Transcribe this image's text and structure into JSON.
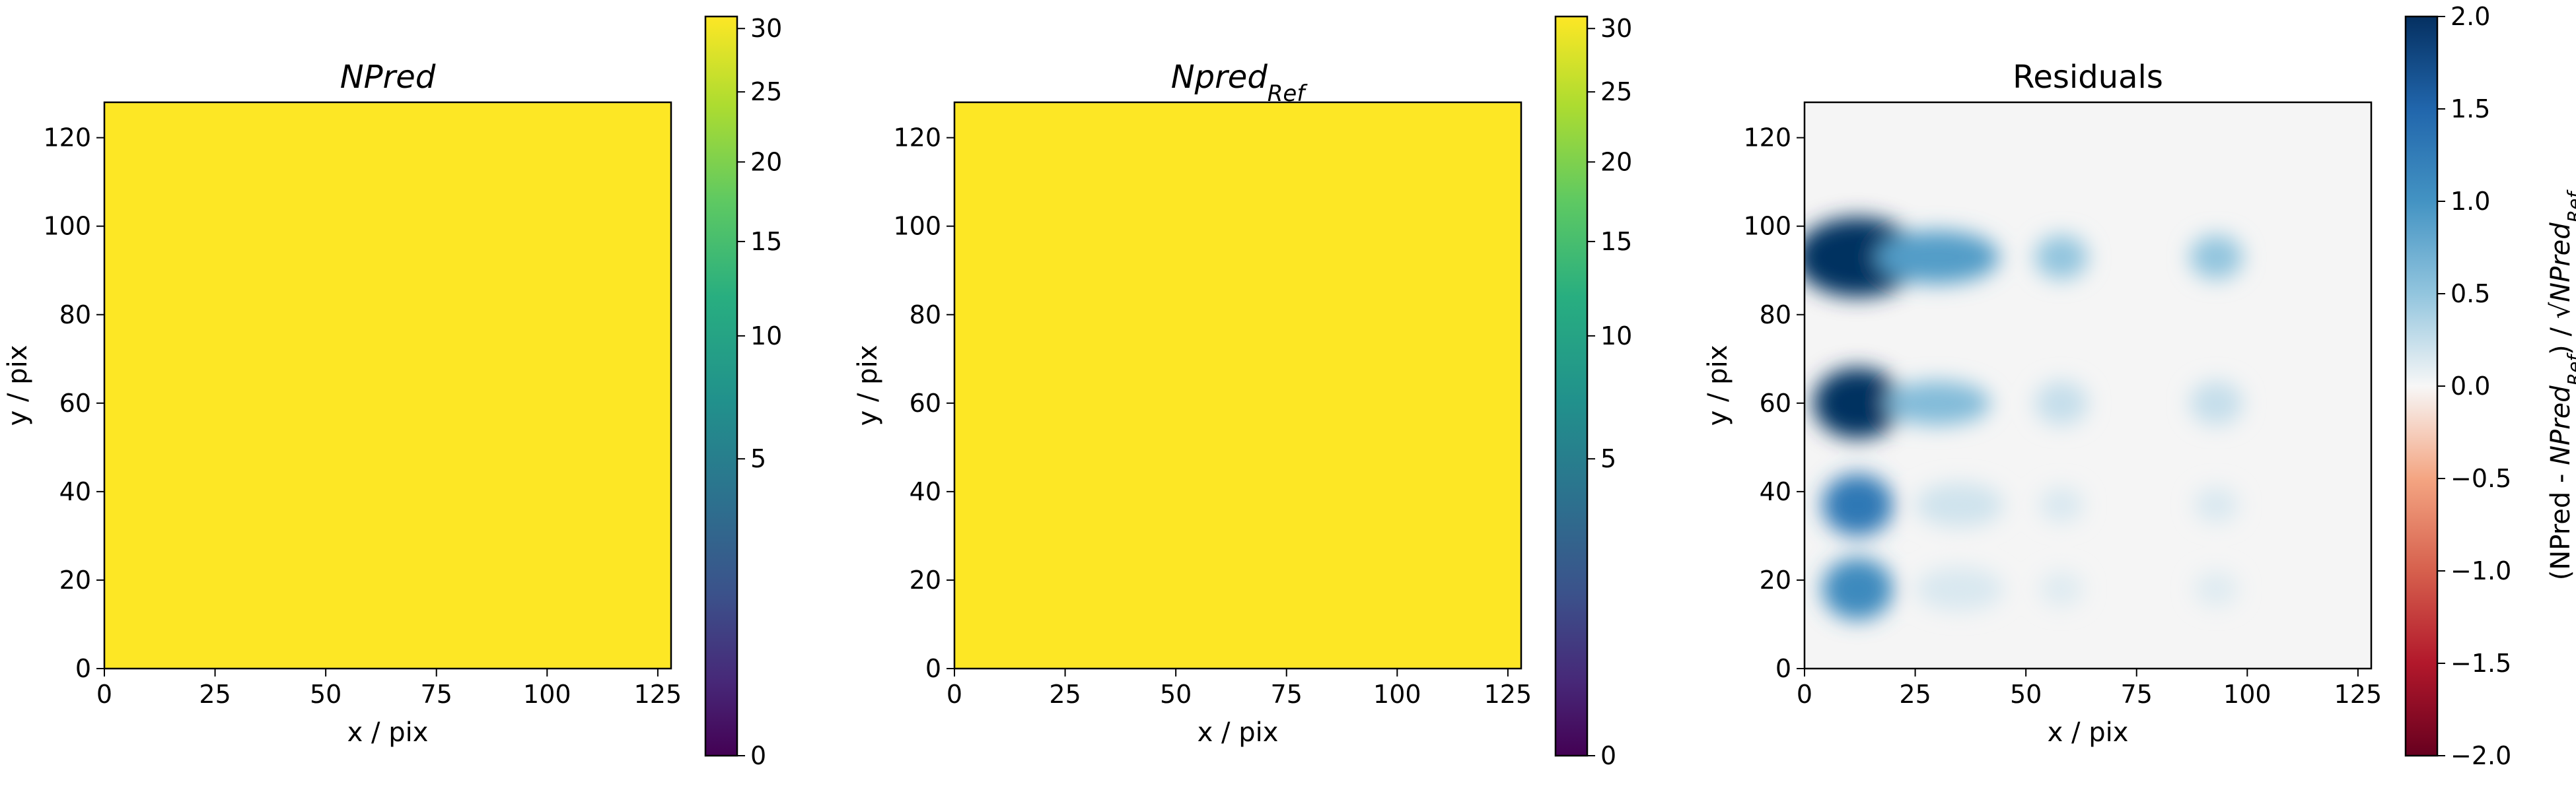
{
  "chart_data": [
    {
      "type": "heatmap",
      "title": "NPred",
      "title_italic": true,
      "xlabel": "x / pix",
      "ylabel": "y / pix",
      "xlim": [
        0,
        128
      ],
      "ylim": [
        0,
        128
      ],
      "xticks": [
        0,
        25,
        50,
        75,
        100,
        125
      ],
      "yticks": [
        0,
        20,
        40,
        60,
        80,
        100,
        120
      ],
      "fill_color": "#fde725",
      "colorbar": {
        "colormap": "viridis",
        "scale": "sqrt",
        "range": [
          0,
          31
        ],
        "ticks": [
          0,
          5,
          10,
          15,
          20,
          25,
          30
        ]
      }
    },
    {
      "type": "heatmap",
      "title": "Npred",
      "title_subscript": "Ref",
      "title_italic": true,
      "xlabel": "x / pix",
      "ylabel": "y / pix",
      "xlim": [
        0,
        128
      ],
      "ylim": [
        0,
        128
      ],
      "xticks": [
        0,
        25,
        50,
        75,
        100,
        125
      ],
      "yticks": [
        0,
        20,
        40,
        60,
        80,
        100,
        120
      ],
      "fill_color": "#fde725",
      "colorbar": {
        "colormap": "viridis",
        "scale": "sqrt",
        "range": [
          0,
          31
        ],
        "ticks": [
          0,
          5,
          10,
          15,
          20,
          25,
          30
        ]
      }
    },
    {
      "type": "heatmap",
      "title": "Residuals",
      "title_italic": false,
      "xlabel": "x / pix",
      "ylabel": "y / pix",
      "xlim": [
        0,
        128
      ],
      "ylim": [
        0,
        128
      ],
      "xticks": [
        0,
        25,
        50,
        75,
        100,
        125
      ],
      "yticks": [
        0,
        20,
        40,
        60,
        80,
        100,
        120
      ],
      "background_color": "#f5f5f5",
      "blobs": [
        {
          "x": 12,
          "y": 93,
          "rx": 14,
          "ry": 9,
          "value": 2.0
        },
        {
          "x": 30,
          "y": 93,
          "rx": 14,
          "ry": 6,
          "value": 0.9
        },
        {
          "x": 58,
          "y": 93,
          "rx": 6,
          "ry": 5,
          "value": 0.5
        },
        {
          "x": 93,
          "y": 93,
          "rx": 6,
          "ry": 5,
          "value": 0.5
        },
        {
          "x": 12,
          "y": 60,
          "rx": 10,
          "ry": 8,
          "value": 2.0
        },
        {
          "x": 30,
          "y": 60,
          "rx": 12,
          "ry": 5,
          "value": 0.6
        },
        {
          "x": 58,
          "y": 60,
          "rx": 6,
          "ry": 5,
          "value": 0.25
        },
        {
          "x": 93,
          "y": 60,
          "rx": 6,
          "ry": 5,
          "value": 0.25
        },
        {
          "x": 12,
          "y": 37,
          "rx": 8,
          "ry": 7,
          "value": 1.3
        },
        {
          "x": 35,
          "y": 37,
          "rx": 10,
          "ry": 5,
          "value": 0.2
        },
        {
          "x": 58,
          "y": 37,
          "rx": 5,
          "ry": 4,
          "value": 0.15
        },
        {
          "x": 93,
          "y": 37,
          "rx": 5,
          "ry": 4,
          "value": 0.15
        },
        {
          "x": 12,
          "y": 18,
          "rx": 8,
          "ry": 7,
          "value": 1.1
        },
        {
          "x": 35,
          "y": 18,
          "rx": 10,
          "ry": 5,
          "value": 0.15
        },
        {
          "x": 58,
          "y": 18,
          "rx": 5,
          "ry": 4,
          "value": 0.12
        },
        {
          "x": 93,
          "y": 18,
          "rx": 5,
          "ry": 4,
          "value": 0.12
        }
      ],
      "colorbar": {
        "colormap": "RdBu",
        "scale": "linear",
        "range": [
          -2.0,
          2.0
        ],
        "ticks": [
          -2.0,
          -1.5,
          -1.0,
          -0.5,
          0.0,
          0.5,
          1.0,
          1.5,
          2.0
        ],
        "tick_labels": [
          "−2.0",
          "−1.5",
          "−1.0",
          "−0.5",
          "0.0",
          "0.5",
          "1.0",
          "1.5",
          "2.0"
        ],
        "label_parts": [
          "(NPred - ",
          "NPred",
          "Ref",
          ") / √",
          "NPred",
          "Ref"
        ]
      }
    }
  ]
}
